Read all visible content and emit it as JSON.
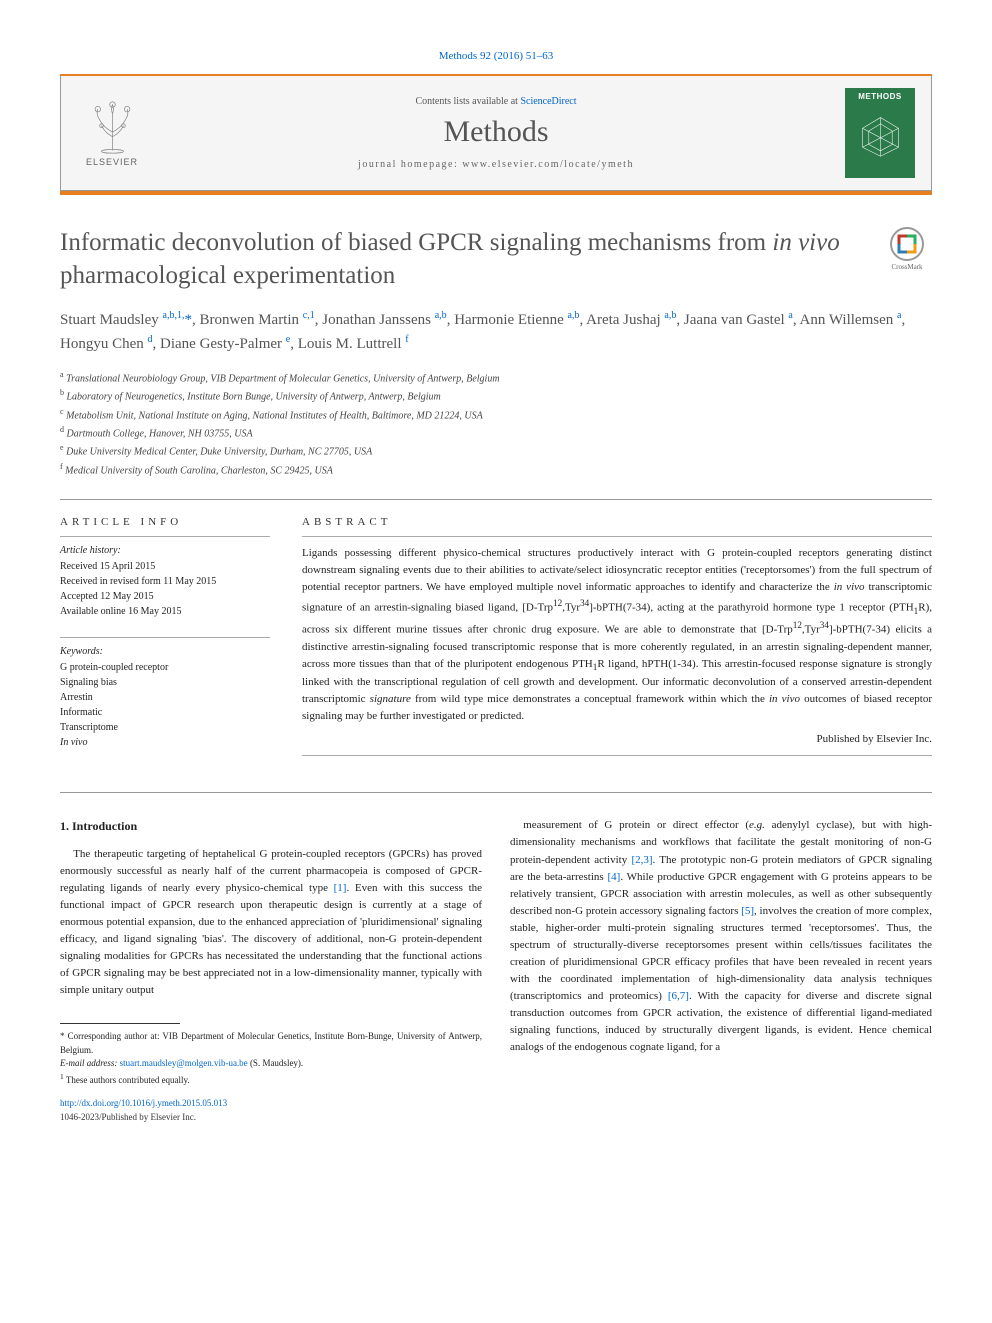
{
  "citation": "Methods 92 (2016) 51–63",
  "header": {
    "contents_prefix": "Contents lists available at ",
    "contents_link": "ScienceDirect",
    "journal_name": "Methods",
    "homepage_label": "journal homepage: www.elsevier.com/locate/ymeth",
    "publisher_logo_text": "ELSEVIER",
    "cover_title": "METHODS"
  },
  "crossmark_label": "CrossMark",
  "title_parts": {
    "pre": "Informatic deconvolution of biased GPCR signaling mechanisms from ",
    "italic": "in vivo",
    "post": " pharmacological experimentation"
  },
  "authors_html": "Stuart Maudsley <sup>a,b,1,</sup><span class='star'>*</span>, Bronwen Martin <sup>c,1</sup>, Jonathan Janssens <sup>a,b</sup>, Harmonie Etienne <sup>a,b</sup>, Areta Jushaj <sup>a,b</sup>, Jaana van Gastel <sup>a</sup>, Ann Willemsen <sup>a</sup>, Hongyu Chen <sup>d</sup>, Diane Gesty-Palmer <sup>e</sup>, Louis M. Luttrell <sup>f</sup>",
  "affiliations": [
    "a Translational Neurobiology Group, VIB Department of Molecular Genetics, University of Antwerp, Belgium",
    "b Laboratory of Neurogenetics, Institute Born Bunge, University of Antwerp, Antwerp, Belgium",
    "c Metabolism Unit, National Institute on Aging, National Institutes of Health, Baltimore, MD 21224, USA",
    "d Dartmouth College, Hanover, NH 03755, USA",
    "e Duke University Medical Center, Duke University, Durham, NC 27705, USA",
    "f Medical University of South Carolina, Charleston, SC 29425, USA"
  ],
  "info": {
    "header": "ARTICLE INFO",
    "history_label": "Article history:",
    "history": [
      "Received 15 April 2015",
      "Received in revised form 11 May 2015",
      "Accepted 12 May 2015",
      "Available online 16 May 2015"
    ],
    "keywords_label": "Keywords:",
    "keywords": [
      "G protein-coupled receptor",
      "Signaling bias",
      "Arrestin",
      "Informatic",
      "Transcriptome",
      "In vivo"
    ]
  },
  "abstract": {
    "header": "ABSTRACT",
    "text_html": "Ligands possessing different physico-chemical structures productively interact with G protein-coupled receptors generating distinct downstream signaling events due to their abilities to activate/select idiosyncratic receptor entities ('receptorsomes') from the full spectrum of potential receptor partners. We have employed multiple novel informatic approaches to identify and characterize the <em>in vivo</em> transcriptomic signature of an arrestin-signaling biased ligand, [D-Trp<sup>12</sup>,Tyr<sup>34</sup>]-bPTH(7-34), acting at the parathyroid hormone type 1 receptor (PTH<sub>1</sub>R), across six different murine tissues after chronic drug exposure. We are able to demonstrate that [D-Trp<sup>12</sup>,Tyr<sup>34</sup>]-bPTH(7-34) elicits a distinctive arrestin-signaling focused transcriptomic response that is more coherently regulated, in an arrestin signaling-dependent manner, across more tissues than that of the pluripotent endogenous PTH<sub>1</sub>R ligand, hPTH(1-34). This arrestin-focused response signature is strongly linked with the transcriptional regulation of cell growth and development. Our informatic deconvolution of a conserved arrestin-dependent transcriptomic <em>signature</em> from wild type mice demonstrates a conceptual framework within which the <em>in vivo</em> outcomes of biased receptor signaling may be further investigated or predicted.",
    "publisher": "Published by Elsevier Inc."
  },
  "body": {
    "section_heading": "1. Introduction",
    "col1_html": "The therapeutic targeting of heptahelical G protein-coupled receptors (GPCRs) has proved enormously successful as nearly half of the current pharmacopeia is composed of GPCR-regulating ligands of nearly every physico-chemical type <a class='ref'>[1]</a>. Even with this success the functional impact of GPCR research upon therapeutic design is currently at a stage of enormous potential expansion, due to the enhanced appreciation of 'pluridimensional' signaling efficacy, and ligand signaling 'bias'. The discovery of additional, non-G protein-dependent signaling modalities for GPCRs has necessitated the understanding that the functional actions of GPCR signaling may be best appreciated not in a low-dimensionality manner, typically with simple unitary output",
    "col2_html": "measurement of G protein or direct effector (<em>e.g.</em> adenylyl cyclase), but with high-dimensionality mechanisms and workflows that facilitate the gestalt monitoring of non-G protein-dependent activity <a class='ref'>[2,3]</a>. The prototypic non-G protein mediators of GPCR signaling are the beta-arrestins <a class='ref'>[4]</a>. While productive GPCR engagement with G proteins appears to be relatively transient, GPCR association with arrestin molecules, as well as other subsequently described non-G protein accessory signaling factors <a class='ref'>[5]</a>, involves the creation of more complex, stable, higher-order multi-protein signaling structures termed 'receptorsomes'. Thus, the spectrum of structurally-diverse receptorsomes present within cells/tissues facilitates the creation of pluridimensional GPCR efficacy profiles that have been revealed in recent years with the coordinated implementation of high-dimensionality data analysis techniques (transcriptomics and proteomics) <a class='ref'>[6,7]</a>. With the capacity for diverse and discrete signal transduction outcomes from GPCR activation, the existence of differential ligand-mediated signaling functions, induced by structurally divergent ligands, is evident. Hence chemical analogs of the endogenous cognate ligand, for a"
  },
  "footnotes": {
    "corresponding": "* Corresponding author at: VIB Department of Molecular Genetics, Institute Born-Bunge, University of Antwerp, Belgium.",
    "email_label": "E-mail address: ",
    "email": "stuart.maudsley@molgen.vib-ua.be",
    "email_suffix": " (S. Maudsley).",
    "equal": "1 These authors contributed equally."
  },
  "doi": "http://dx.doi.org/10.1016/j.ymeth.2015.05.013",
  "copyright": "1046-2023/Published by Elsevier Inc.",
  "colors": {
    "accent": "#e67e22",
    "link": "#0066cc",
    "cover_bg": "#2a7a4a",
    "text_muted": "#555"
  }
}
